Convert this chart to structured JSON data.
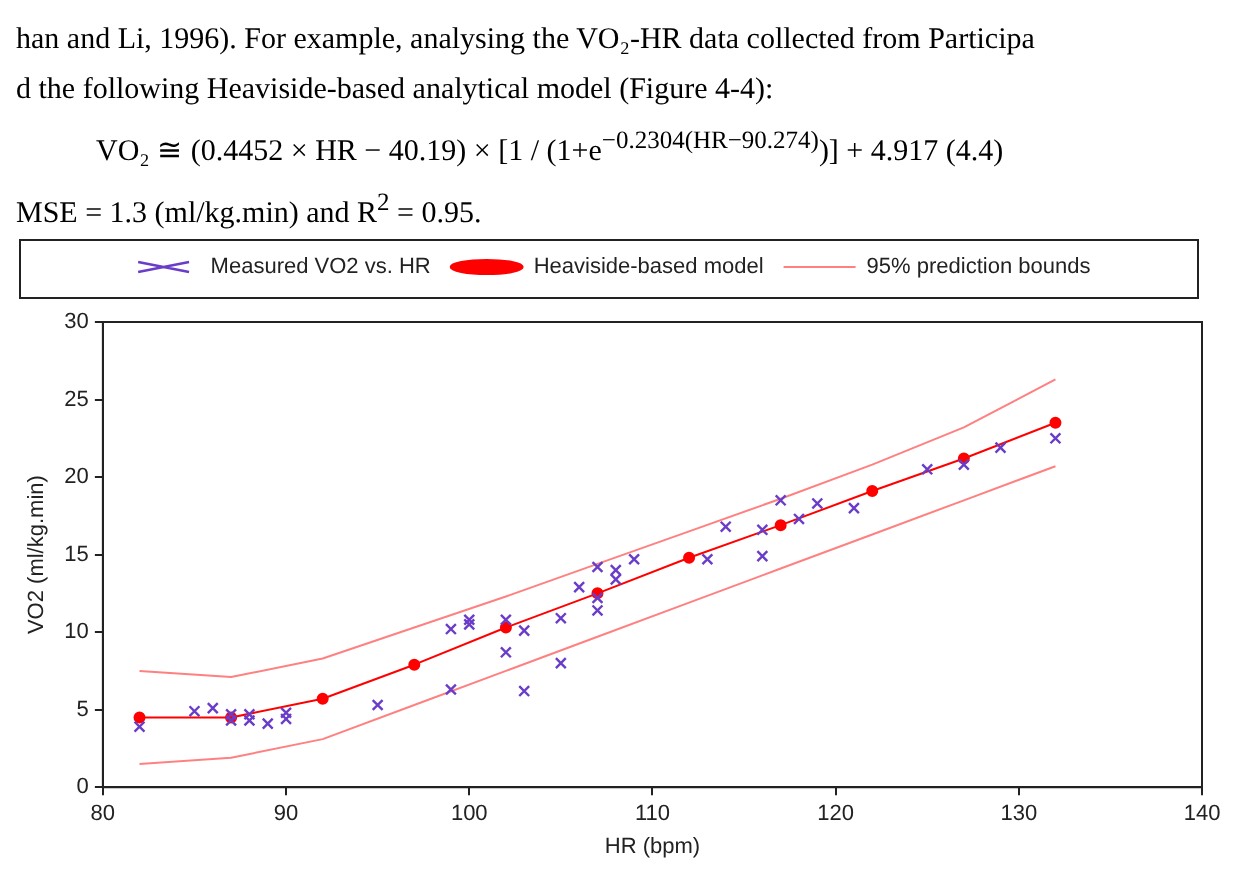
{
  "chart_data": {
    "type": "line",
    "xlabel": "HR (bpm)",
    "ylabel": "VO2 (ml/kg.min)",
    "annotations": [
      "han and Li, 1996). For example, analysing the VO₂-HR data collected from Participa",
      "d the following Heaviside-based analytical model (Figure 4-4):",
      "VO₂ ≅ (0.4452 × HR − 40.19) × [1 / (1+e$^{−0.2304(HR−90.274)}$)] + 4.917          (4.4)",
      "MSE = 1.3 (ml/kg.min) and R$^{2}$ = 0.95."
    ],
    "xlim": [
      80,
      140
    ],
    "xticks": [
      80,
      90,
      100,
      110,
      120,
      130,
      140
    ],
    "ylim": [
      0,
      30
    ],
    "yticks": [
      0,
      5,
      10,
      15,
      20,
      25,
      30
    ],
    "grid": false,
    "legend": "top",
    "series": [
      {
        "name": "Heaviside-based model",
        "color": "#ff0000",
        "marker": "circle",
        "line_style": "solid",
        "x": [
          82,
          87,
          92,
          97,
          102,
          107,
          112,
          117,
          122,
          127,
          132
        ],
        "values": [
          4.5,
          4.5,
          5.7,
          7.9,
          10.3,
          12.5,
          14.8,
          16.9,
          19.1,
          21.2,
          23.5
        ]
      },
      {
        "name": "95% prediction bounds",
        "color": "#ff8080",
        "marker": "none",
        "line_style": "solid",
        "x": [
          82,
          87,
          92,
          97,
          102,
          107,
          112,
          117,
          122,
          127,
          132
        ],
        "values": [
          7.5,
          7.1,
          8.3,
          10.3,
          12.3,
          14.4,
          16.5,
          18.6,
          20.8,
          23.2,
          26.3
        ]
      },
      {
        "color": "#ff8080",
        "marker": "none",
        "line_style": "solid",
        "x": [
          82,
          87,
          92,
          97,
          102,
          107,
          112,
          117,
          122,
          127,
          132
        ],
        "values": [
          1.5,
          1.9,
          3.1,
          5.3,
          7.5,
          9.7,
          11.9,
          14.1,
          16.3,
          18.5,
          20.7
        ]
      },
      {
        "name": "Measured VO2 vs. HR",
        "type": "scatter",
        "color": "#6a3dc8",
        "marker": "cross",
        "x": [
          82,
          85,
          86,
          87,
          87,
          88,
          88,
          89,
          90,
          90,
          95,
          99,
          99,
          100,
          100,
          102,
          102,
          103,
          103,
          105,
          105,
          106,
          107,
          107,
          107,
          108,
          108,
          109,
          113,
          114,
          116,
          116,
          117,
          118,
          119,
          121,
          125,
          127,
          129,
          132
        ],
        "values": [
          3.9,
          4.9,
          5.1,
          4.7,
          4.3,
          4.7,
          4.3,
          4.1,
          4.8,
          4.4,
          5.3,
          10.2,
          6.3,
          10.8,
          10.5,
          10.8,
          8.7,
          10.1,
          6.2,
          10.9,
          8.0,
          12.9,
          14.2,
          12.2,
          11.4,
          14.0,
          13.4,
          14.7,
          14.7,
          16.8,
          16.6,
          14.9,
          18.5,
          17.3,
          18.3,
          18.0,
          20.5,
          20.8,
          21.9,
          22.5
        ]
      }
    ]
  }
}
